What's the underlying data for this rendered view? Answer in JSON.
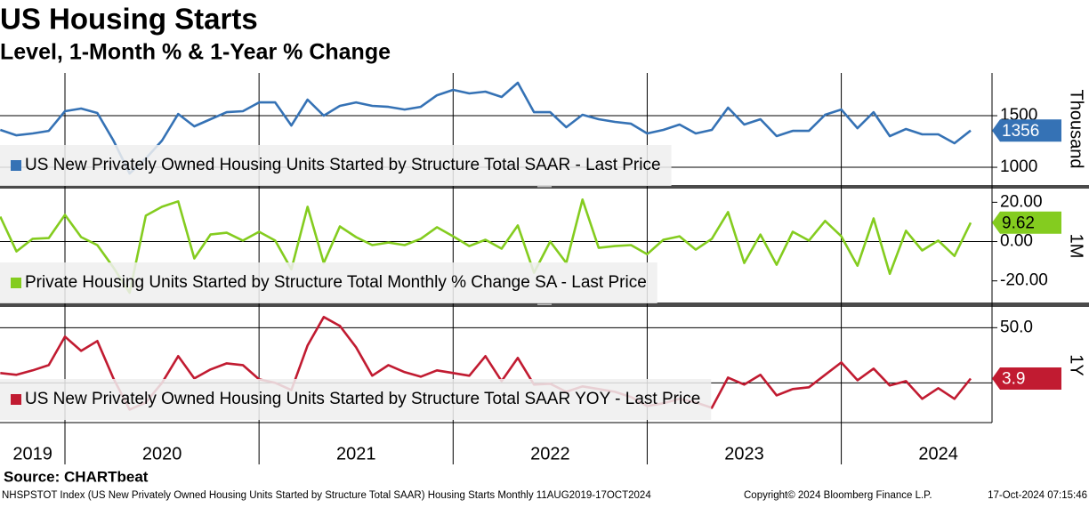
{
  "header": {
    "title": "US Housing Starts",
    "subtitle": "Level, 1-Month % & 1-Year % Change"
  },
  "chart_data": [
    {
      "type": "line",
      "axis_label": "Thousand",
      "ylim": [
        828,
        1914
      ],
      "yticks": [
        1000,
        1500
      ],
      "grid": true,
      "series": [
        {
          "name": "US New Privately Owned Housing Units Started by Structure Total SAAR - Last Price",
          "color": "#3572b5",
          "values": [
            1362,
            1310,
            1328,
            1353,
            1543,
            1569,
            1526,
            1259,
            940,
            1086,
            1259,
            1517,
            1397,
            1466,
            1534,
            1543,
            1629,
            1629,
            1405,
            1655,
            1500,
            1595,
            1629,
            1595,
            1586,
            1560,
            1586,
            1698,
            1750,
            1716,
            1733,
            1681,
            1819,
            1534,
            1534,
            1388,
            1509,
            1466,
            1440,
            1422,
            1328,
            1362,
            1414,
            1328,
            1362,
            1578,
            1414,
            1466,
            1302,
            1353,
            1353,
            1509,
            1560,
            1379,
            1534,
            1302,
            1371,
            1319,
            1319,
            1233,
            1356
          ]
        }
      ]
    },
    {
      "type": "line",
      "axis_label": "1M",
      "ylim": [
        -31,
        26.5
      ],
      "yticks": [
        {
          "value": -20,
          "label": "-20.00"
        },
        {
          "value": 0,
          "label": "0.00"
        },
        {
          "value": 20,
          "label": "20.00"
        }
      ],
      "grid": false,
      "series": [
        {
          "name": "Private Housing Units Started by Structure Total Monthly % Change SA - Last Price",
          "color": "#84cc1f",
          "values": [
            12.7,
            -5,
            1.4,
            1.8,
            13.6,
            2.3,
            -1.8,
            -13.2,
            -26,
            13.2,
            17.7,
            20.5,
            -8.6,
            3.6,
            4.5,
            0.5,
            5,
            0.5,
            -14.1,
            17.7,
            -10.9,
            7.7,
            2.3,
            -1.8,
            -0.5,
            -1.8,
            1.4,
            7.3,
            2.7,
            -2.3,
            0.9,
            -3.6,
            8.2,
            -15.9,
            0,
            -10.9,
            21.4,
            -3.2,
            -2.3,
            -1.8,
            -6.4,
            0.9,
            2.7,
            -4.1,
            1.4,
            15,
            -10.9,
            3.6,
            -11.8,
            5,
            0.5,
            10.5,
            2.7,
            -12.3,
            11.8,
            -16.4,
            5.5,
            -4.5,
            0.5,
            -7.3,
            9.62
          ]
        }
      ]
    },
    {
      "type": "line",
      "axis_label": "1Y",
      "ylim": [
        -36,
        68
      ],
      "yticks": [
        {
          "value": 50,
          "label": "50.0"
        }
      ],
      "grid": true,
      "categories": [
        null,
        null,
        "2019",
        null,
        null,
        null,
        null,
        null,
        null,
        null,
        "2020",
        null,
        null,
        null,
        null,
        null,
        null,
        null,
        null,
        null,
        null,
        null,
        "2021",
        null,
        null,
        null,
        null,
        null,
        null,
        null,
        null,
        null,
        null,
        null,
        "2022",
        null,
        null,
        null,
        null,
        null,
        null,
        null,
        null,
        null,
        null,
        null,
        "2023",
        null,
        null,
        null,
        null,
        null,
        null,
        null,
        null,
        null,
        null,
        null,
        "2024",
        null,
        null
      ],
      "series": [
        {
          "name": "US New Privately Owned Housing Units Started by Structure Total SAAR YOY - Last Price",
          "color": "#c11b31",
          "values": [
            8.9,
            7.3,
            11.3,
            16.1,
            41.9,
            29,
            37.9,
            4,
            -24.2,
            -17.7,
            0,
            24.2,
            4,
            12.1,
            17.7,
            16.1,
            3.2,
            0,
            -6.5,
            33.9,
            59.7,
            51.6,
            32.3,
            6.5,
            16.1,
            9.7,
            5.6,
            11.3,
            8.9,
            6.5,
            24.2,
            1.6,
            22.6,
            -1.6,
            -0.8,
            -8.1,
            -3.2,
            -5.6,
            -8.1,
            -12.9,
            -21,
            -18.5,
            -14.5,
            -17.7,
            -22.6,
            4.8,
            -1.6,
            7.3,
            -11.3,
            -5.6,
            -4,
            7.3,
            18.5,
            2.4,
            12.9,
            -2.4,
            1.6,
            -14.5,
            -4.8,
            -14.5,
            3.9
          ]
        }
      ]
    }
  ],
  "footer": {
    "source": "Source: CHARTbeat",
    "note": "NHSPSTOT Index (US New Privately Owned Housing Units Started by Structure Total SAAR) Housing Starts  Monthly 11AUG2019-17OCT2024",
    "copyright": "Copyright© 2024 Bloomberg Finance L.P.",
    "timestamp": "17-Oct-2024 07:15:46"
  }
}
